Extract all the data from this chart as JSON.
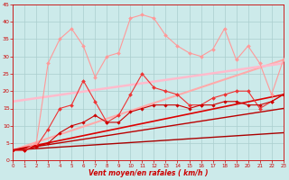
{
  "xlabel": "Vent moyen/en rafales ( km/h )",
  "xlim": [
    0,
    23
  ],
  "ylim": [
    0,
    45
  ],
  "yticks": [
    0,
    5,
    10,
    15,
    20,
    25,
    30,
    35,
    40,
    45
  ],
  "xticks": [
    0,
    1,
    2,
    3,
    4,
    5,
    6,
    7,
    8,
    9,
    10,
    11,
    12,
    13,
    14,
    15,
    16,
    17,
    18,
    19,
    20,
    21,
    22,
    23
  ],
  "bg_color": "#cceaea",
  "grid_color": "#aacece",
  "series": [
    {
      "x": [
        0,
        1,
        2,
        3,
        4,
        5,
        6,
        7,
        8,
        9,
        10,
        11,
        12,
        13,
        14,
        15,
        16,
        17,
        18,
        19,
        20,
        21,
        22,
        23
      ],
      "y": [
        3,
        3,
        5,
        28,
        35,
        38,
        33,
        24,
        30,
        31,
        41,
        42,
        41,
        36,
        33,
        31,
        30,
        32,
        38,
        29,
        33,
        28,
        19,
        29
      ],
      "color": "#ff9999",
      "marker": "D",
      "ms": 2.0,
      "lw": 0.8,
      "zorder": 4
    },
    {
      "x": [
        0,
        23
      ],
      "y": [
        3,
        29
      ],
      "color": "#ffaaaa",
      "marker": null,
      "ms": 0,
      "lw": 1.5,
      "zorder": 2
    },
    {
      "x": [
        0,
        23
      ],
      "y": [
        17,
        28
      ],
      "color": "#ffbbcc",
      "marker": null,
      "ms": 0,
      "lw": 1.8,
      "zorder": 2
    },
    {
      "x": [
        0,
        1,
        2,
        3,
        4,
        5,
        6,
        7,
        8,
        9,
        10,
        11,
        12,
        13,
        14,
        15,
        16,
        17,
        18,
        19,
        20,
        21,
        22,
        23
      ],
      "y": [
        3,
        3,
        4,
        9,
        15,
        16,
        23,
        17,
        11,
        13,
        19,
        25,
        21,
        20,
        19,
        16,
        16,
        18,
        19,
        20,
        20,
        15,
        17,
        19
      ],
      "color": "#ee3333",
      "marker": "D",
      "ms": 2.0,
      "lw": 0.8,
      "zorder": 5
    },
    {
      "x": [
        0,
        23
      ],
      "y": [
        3,
        19
      ],
      "color": "#dd0000",
      "marker": null,
      "ms": 0,
      "lw": 1.2,
      "zorder": 3
    },
    {
      "x": [
        0,
        1,
        2,
        3,
        4,
        5,
        6,
        7,
        8,
        9,
        10,
        11,
        12,
        13,
        14,
        15,
        16,
        17,
        18,
        19,
        20,
        21,
        22,
        23
      ],
      "y": [
        3,
        3,
        4,
        5,
        8,
        10,
        11,
        13,
        11,
        11,
        14,
        15,
        16,
        16,
        16,
        15,
        16,
        16,
        17,
        17,
        16,
        16,
        17,
        19
      ],
      "color": "#cc0000",
      "marker": "D",
      "ms": 1.8,
      "lw": 0.8,
      "zorder": 6
    },
    {
      "x": [
        0,
        23
      ],
      "y": [
        3,
        15
      ],
      "color": "#bb0000",
      "marker": null,
      "ms": 0,
      "lw": 1.0,
      "zorder": 3
    },
    {
      "x": [
        0,
        23
      ],
      "y": [
        3,
        8
      ],
      "color": "#aa0000",
      "marker": null,
      "ms": 0,
      "lw": 1.0,
      "zorder": 3
    }
  ]
}
